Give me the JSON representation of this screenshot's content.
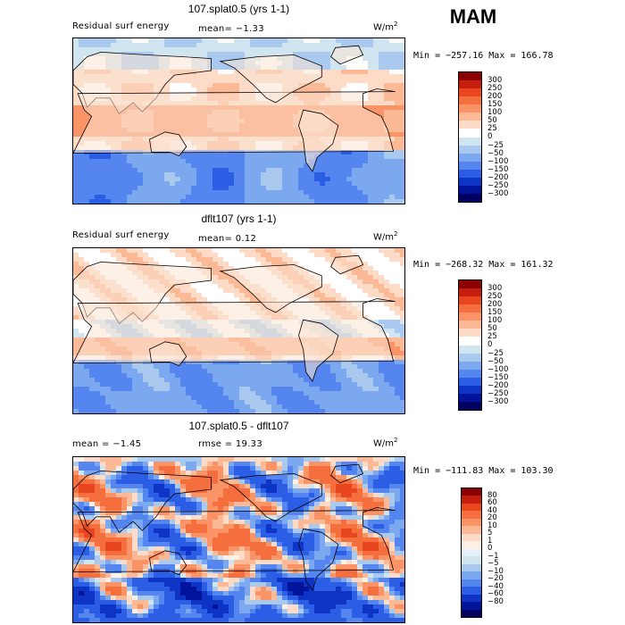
{
  "season": "MAM",
  "units": {
    "base": "W/m",
    "exp": "2"
  },
  "panels": [
    {
      "title": "107.splat0.5 (yrs 1-1)",
      "subtitle": "Residual surf energy",
      "stat": "mean=  −1.33",
      "minmax": "Min = −257.16 Max = 166.78",
      "scheme": "a",
      "colorbar": {
        "colors": [
          "#8b0000",
          "#c41e0e",
          "#e8461e",
          "#f56e3d",
          "#fa9466",
          "#fcb996",
          "#fddbc7",
          "#ffffff",
          "#d1e5f0",
          "#a9c9ee",
          "#7ca8f0",
          "#5585ef",
          "#2c5de5",
          "#0d34c4",
          "#00149b",
          "#000060"
        ],
        "labels": [
          "300",
          "250",
          "200",
          "150",
          "100",
          "50",
          "25",
          "0",
          "−25",
          "−50",
          "−100",
          "−150",
          "−200",
          "−250",
          "−300"
        ]
      }
    },
    {
      "title": "dflt107 (yrs 1-1)",
      "subtitle": "Residual surf energy",
      "stat": "mean=   0.12",
      "minmax": "Min = −268.32 Max = 161.32",
      "scheme": "b",
      "colorbar": {
        "colors": [
          "#8b0000",
          "#c41e0e",
          "#e8461e",
          "#f56e3d",
          "#fa9466",
          "#fcb996",
          "#fddbc7",
          "#ffffff",
          "#d1e5f0",
          "#a9c9ee",
          "#7ca8f0",
          "#5585ef",
          "#2c5de5",
          "#0d34c4",
          "#00149b",
          "#000060"
        ],
        "labels": [
          "300",
          "250",
          "200",
          "150",
          "100",
          "50",
          "25",
          "0",
          "−25",
          "−50",
          "−100",
          "−150",
          "−200",
          "−250",
          "−300"
        ]
      }
    },
    {
      "title": "107.splat0.5 - dflt107",
      "subtitle": "mean =  −1.45",
      "stat": "rmse =  19.33",
      "minmax": "Min = −111.83 Max = 103.30",
      "scheme": "c",
      "colorbar": {
        "colors": [
          "#8b0000",
          "#c41e0e",
          "#e8461e",
          "#f56e3d",
          "#fa9466",
          "#fcb996",
          "#fddbc7",
          "#fff0e6",
          "#e6f0fa",
          "#d1e5f0",
          "#a9c9ee",
          "#7ca8f0",
          "#5585ef",
          "#2c5de5",
          "#0d34c4",
          "#00149b",
          "#000060"
        ],
        "labels": [
          "80",
          "60",
          "40",
          "20",
          "10",
          "5",
          "1",
          "0",
          "−1",
          "−5",
          "−10",
          "−20",
          "−40",
          "−60",
          "−80"
        ]
      }
    }
  ]
}
